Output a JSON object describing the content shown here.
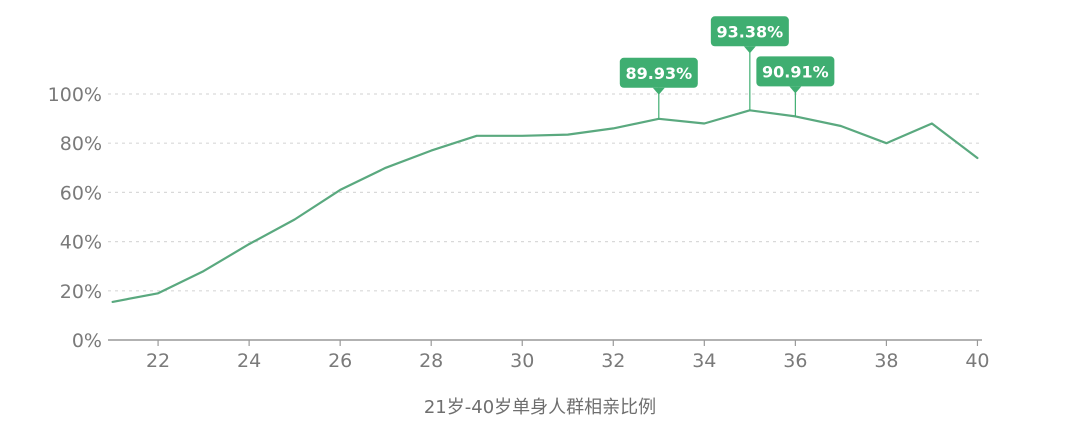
{
  "chart_data": {
    "type": "line",
    "title": "",
    "xlabel": "21岁-40岁单身人群相亲比例",
    "ylabel": "",
    "x": [
      21,
      22,
      23,
      24,
      25,
      26,
      27,
      28,
      29,
      30,
      31,
      32,
      33,
      34,
      35,
      36,
      37,
      38,
      39,
      40
    ],
    "series": [
      {
        "values": [
          15.5,
          19,
          28,
          39,
          49,
          61,
          70,
          77,
          83,
          83,
          83.5,
          86,
          89.93,
          88,
          93.38,
          90.91,
          87,
          80,
          88,
          74
        ]
      }
    ],
    "xlim": [
      20.9,
      40.1
    ],
    "ylim": [
      0,
      100
    ],
    "x_ticks": [
      22,
      24,
      26,
      28,
      30,
      32,
      34,
      36,
      38,
      40
    ],
    "y_ticks": [
      0,
      20,
      40,
      60,
      80,
      100
    ],
    "y_tick_labels": [
      "0%",
      "20%",
      "40%",
      "60%",
      "80%",
      "100%"
    ],
    "grid": "horizontal dashed",
    "annotations": [
      {
        "x": 33,
        "y": 89.93,
        "label": "89.93%"
      },
      {
        "x": 35,
        "y": 93.38,
        "label": "93.38%"
      },
      {
        "x": 36,
        "y": 90.91,
        "label": "90.91%"
      }
    ],
    "colors": {
      "line": "#5aa97f",
      "callout": "#3fae71",
      "grid": "#d9d9d9",
      "axis": "#999999"
    }
  }
}
